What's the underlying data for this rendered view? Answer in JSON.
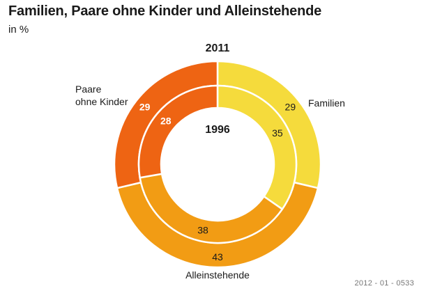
{
  "header": {
    "title": "Familien, Paare ohne Kinder und Alleinstehende",
    "subtitle": "in %"
  },
  "footer": {
    "source_code": "2012 - 01 - 0533"
  },
  "colors": {
    "familien": "#f5db3c",
    "paare": "#ee6413",
    "alleinstehende": "#f29c14",
    "separator": "#ffffff"
  },
  "chart_data": {
    "type": "pie",
    "variant": "nested-donut",
    "title": "Familien, Paare ohne Kinder und Alleinstehende",
    "subtitle": "in %",
    "categories": [
      "Familien",
      "Alleinstehende",
      "Paare\nohne Kinder"
    ],
    "series": [
      {
        "name": "2011",
        "ring": "outer",
        "values": [
          29,
          43,
          29
        ]
      },
      {
        "name": "1996",
        "ring": "inner",
        "values": [
          35,
          38,
          28
        ]
      }
    ],
    "start": "12 o'clock",
    "direction": "clockwise",
    "legend": "direct labels outside the outer ring"
  }
}
